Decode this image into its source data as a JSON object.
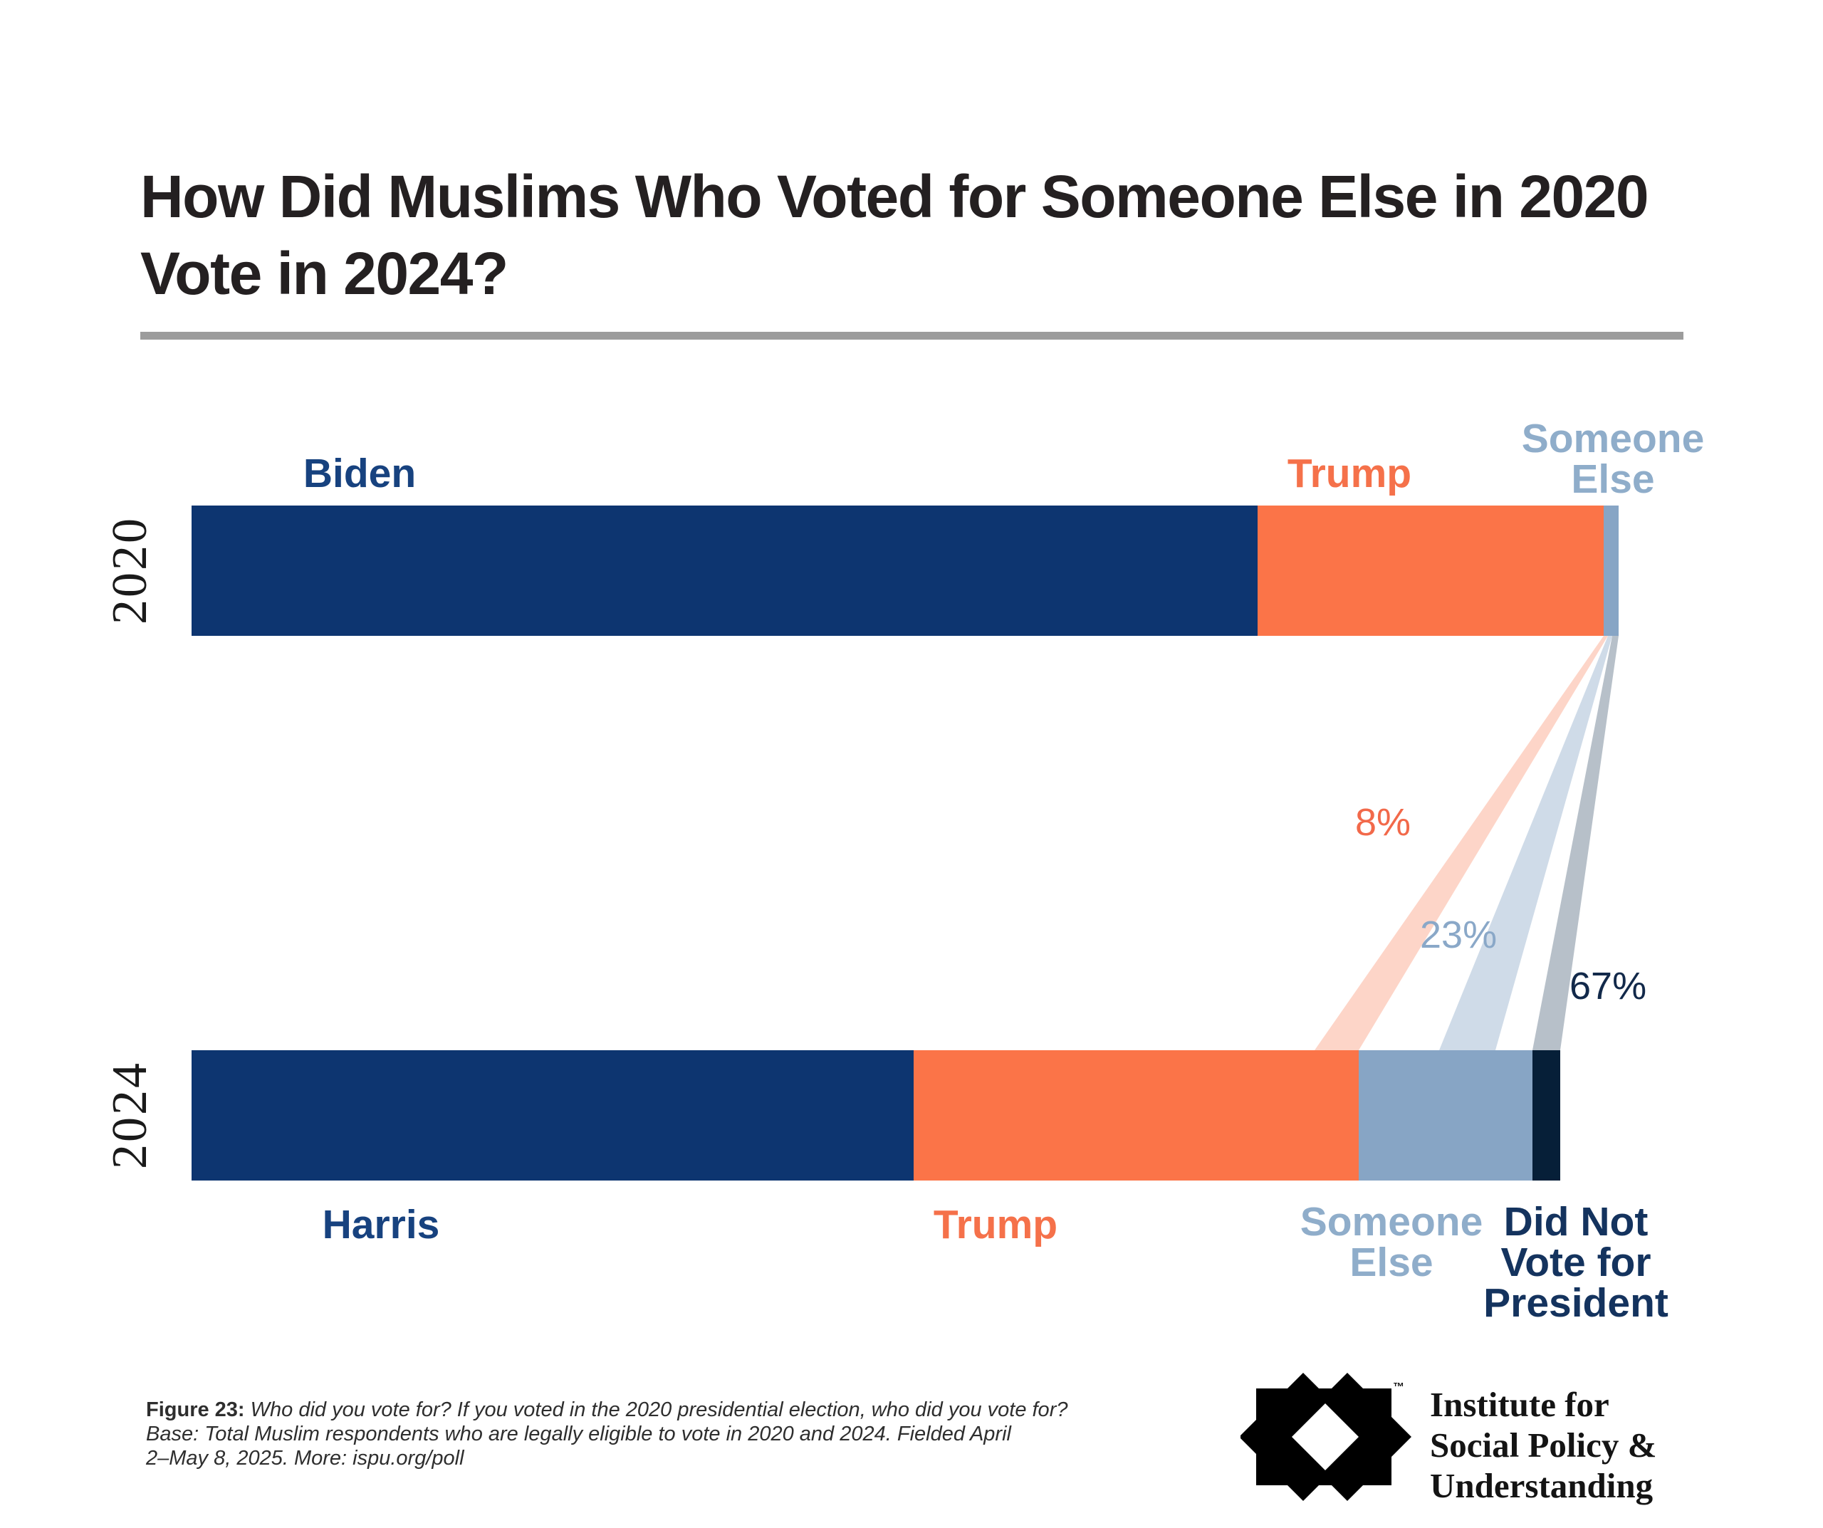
{
  "title": {
    "lines": [
      "How Did Muslims Who Voted for Someone Else in 2020",
      "Vote in 2024?"
    ]
  },
  "colors": {
    "navy": "#0d3570",
    "orange": "#fb7448",
    "steel": "#87a5c5",
    "dark_navy": "#061f38",
    "label_navy": "#17427f",
    "label_orange": "#f5714a",
    "label_steel": "#8fadca",
    "label_dark_navy": "#14335e",
    "pct_orange": "#f2694a",
    "pct_steel": "#8aa8c8",
    "pct_dark": "#12294a",
    "flow_orange": "rgba(248,116,72,0.30)",
    "flow_steel": "rgba(135,165,197,0.40)",
    "flow_dark": "rgba(16,45,75,0.30)",
    "divider": "#9c9c9c",
    "title_text": "#242021",
    "axis_text": "#1a1a1a",
    "caption_text": "#2e2e2e"
  },
  "bars": {
    "y2020": {
      "year_label": "2020",
      "segments": [
        {
          "label": "Biden",
          "width_pct": 74.7,
          "color_key": "navy"
        },
        {
          "label": "Trump",
          "width_pct": 24.25,
          "color_key": "orange"
        },
        {
          "label": "Someone Else",
          "width_pct": 1.05,
          "color_key": "steel"
        }
      ]
    },
    "y2024": {
      "year_label": "2024",
      "segments": [
        {
          "label": "Harris",
          "width_pct": 52.76,
          "color_key": "navy"
        },
        {
          "label": "Trump",
          "width_pct": 32.52,
          "color_key": "orange"
        },
        {
          "label": "Someone Else",
          "width_pct": 12.69,
          "color_key": "steel"
        },
        {
          "label": "Did Not Vote for President",
          "width_pct": 2.03,
          "color_key": "dark_navy"
        }
      ]
    }
  },
  "bar_labels": {
    "biden": "Biden",
    "trump_2020": "Trump",
    "someone_else_2020_lines": [
      "Someone",
      "Else"
    ],
    "harris": "Harris",
    "trump_2024": "Trump",
    "someone_else_2024_lines": [
      "Someone",
      "Else"
    ],
    "did_not_vote_lines": [
      "Did Not",
      "Vote for",
      "President"
    ]
  },
  "flow_labels": {
    "to_trump": "8%",
    "to_someone_else": "23%",
    "to_did_not_vote": "67%"
  },
  "caption": {
    "prefix": "Figure 23:",
    "line1_rest": " Who did you vote for? If you voted in the 2020 presidential election, who did you vote for?",
    "line2": "Base: Total Muslim respondents who are legally eligible to vote in 2020 and 2024. Fielded April",
    "line3": "2–May 8, 2025. More: ispu.org/poll"
  },
  "logo": {
    "trademark": "™",
    "lines": [
      "Institute for",
      "Social Policy &",
      "Understanding"
    ]
  },
  "chart_data": {
    "type": "bar",
    "subtype": "paired-horizontal-stacked-bars-with-flow",
    "title": "How Did Muslims Who Voted for Someone Else in 2020 Vote in 2024?",
    "rows": [
      {
        "year": "2020",
        "segments": [
          {
            "label": "Biden",
            "share_pct_est": 75
          },
          {
            "label": "Trump",
            "share_pct_est": 24
          },
          {
            "label": "Someone Else",
            "share_pct_est": 1
          }
        ]
      },
      {
        "year": "2024",
        "segments": [
          {
            "label": "Harris",
            "share_pct_est": 53
          },
          {
            "label": "Trump",
            "share_pct_est": 32
          },
          {
            "label": "Someone Else",
            "share_pct_est": 13
          },
          {
            "label": "Did Not Vote for President",
            "share_pct_est": 2
          }
        ]
      }
    ],
    "flows_from_2020_someone_else": [
      {
        "to": "Trump (2024)",
        "value_pct": 8
      },
      {
        "to": "Someone Else (2024)",
        "value_pct": 23
      },
      {
        "to": "Did Not Vote for President (2024)",
        "value_pct": 67
      }
    ],
    "legend_position": "labels-adjacent-to-bars",
    "grid": false,
    "source_note": "Figure 23 — ISPU, fielded April 2–May 8, 2025, ispu.org/poll"
  }
}
